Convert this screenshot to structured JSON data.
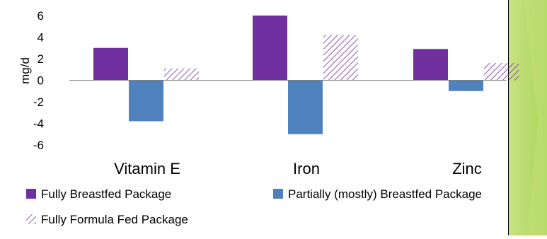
{
  "colors": {
    "fully_breastfed": "#7030a0",
    "partially_breastfed": "#4f81bd",
    "fully_formula_hatch": "#7030a0",
    "zero_line": "#808080",
    "side_panel_light": "#c5e07a",
    "side_panel_dark": "#9acd3c"
  },
  "chart_data": {
    "type": "bar",
    "title": "",
    "xlabel": "",
    "ylabel": "mg/d",
    "ylim": [
      -6,
      6
    ],
    "yticks": [
      6,
      4,
      2,
      0,
      -2,
      -4,
      -6
    ],
    "ytick_labels": [
      "6",
      "4",
      "2",
      "0",
      "-2",
      "-4",
      "-6"
    ],
    "grid": false,
    "legend_position": "bottom",
    "categories": [
      "Vitamin E",
      "Iron",
      "Zinc"
    ],
    "series": [
      {
        "name": "Fully Breastfed Package",
        "values": [
          3.0,
          6.0,
          2.9
        ],
        "fill": "solid",
        "color": "#7030a0"
      },
      {
        "name": "Partially (mostly) Breastfed Package",
        "values": [
          -3.8,
          -5.0,
          -1.0
        ],
        "fill": "solid",
        "color": "#4f81bd"
      },
      {
        "name": "Fully Formula Fed Package",
        "values": [
          1.1,
          4.2,
          1.6
        ],
        "fill": "diagonal-hatch",
        "color": "#7030a0"
      }
    ]
  }
}
